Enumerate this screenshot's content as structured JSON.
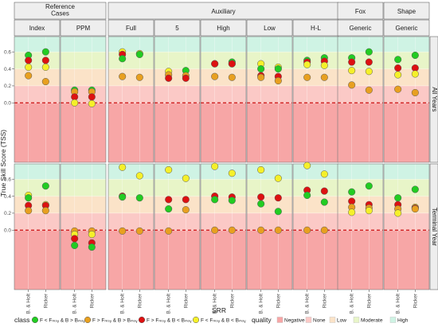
{
  "chart_data": {
    "type": "scatter",
    "ylabel": "True Skill Score (TSS)",
    "xlabel": "SRR",
    "categories": [
      "B. & Holt",
      "Ricker"
    ],
    "ylim": [
      -0.7,
      0.78
    ],
    "yticks": [
      0.0,
      0.2,
      0.4,
      0.6
    ],
    "ytick_labels": [
      "0.0",
      "0.2",
      "0.4",
      "0.6"
    ],
    "reference_line": {
      "y": 0.0,
      "color": "#cc1111",
      "style": "dashed"
    },
    "quality_bands": [
      {
        "name": "Negative",
        "from": -0.7,
        "to": 0.0,
        "color": "#f7a6a6"
      },
      {
        "name": "None",
        "from": 0.0,
        "to": 0.2,
        "color": "#fbc9c6"
      },
      {
        "name": "Low",
        "from": 0.2,
        "to": 0.4,
        "color": "#fbe3c8"
      },
      {
        "name": "Moderate",
        "from": 0.4,
        "to": 0.6,
        "color": "#e8f5c8"
      },
      {
        "name": "High",
        "from": 0.6,
        "to": 0.78,
        "color": "#cff3e4"
      }
    ],
    "groups": [
      {
        "label": "Reference\nCases",
        "panels": [
          "Index",
          "PPM"
        ]
      },
      {
        "label": "Auxiliary",
        "panels": [
          "Full",
          "5",
          "High",
          "Low",
          "H-L"
        ]
      },
      {
        "label": "Fox",
        "panels": [
          "Generic"
        ]
      },
      {
        "label": "Shape",
        "panels": [
          "Generic"
        ]
      }
    ],
    "row_labels": [
      "All Years",
      "Terminal Year"
    ],
    "class_legend": {
      "title": "class",
      "items": [
        {
          "key": "green",
          "label": "F < Fₘₛᵧ & B > Bₘₛᵧ",
          "color": "#22cc22"
        },
        {
          "key": "orange",
          "label": "F > Fₘₛᵧ & B > Bₘₛᵧ",
          "color": "#e8a020"
        },
        {
          "key": "red",
          "label": "F > Fₘₛᵧ & B < Bₘₛᵧ",
          "color": "#dd1111"
        },
        {
          "key": "yellow",
          "label": "F < Fₘₛᵧ & B < Bₘₛᵧ",
          "color": "#f5f02a"
        }
      ]
    },
    "quality_legend": {
      "title": "quality",
      "items": [
        {
          "label": "Negative",
          "color": "#f7a6a6"
        },
        {
          "label": "None",
          "color": "#fbc9c6"
        },
        {
          "label": "Low",
          "color": "#fbe3c8"
        },
        {
          "label": "Moderate",
          "color": "#e8f5c8"
        },
        {
          "label": "High",
          "color": "#cff3e4"
        }
      ]
    },
    "panels": [
      {
        "row": 0,
        "col": 0,
        "points": [
          {
            "x": 0,
            "y": 0.56,
            "c": "green"
          },
          {
            "x": 0,
            "y": 0.5,
            "c": "red"
          },
          {
            "x": 0,
            "y": 0.42,
            "c": "yellow"
          },
          {
            "x": 0,
            "y": 0.32,
            "c": "orange"
          },
          {
            "x": 1,
            "y": 0.6,
            "c": "green"
          },
          {
            "x": 1,
            "y": 0.5,
            "c": "red"
          },
          {
            "x": 1,
            "y": 0.42,
            "c": "yellow"
          },
          {
            "x": 1,
            "y": 0.25,
            "c": "orange"
          }
        ]
      },
      {
        "row": 0,
        "col": 1,
        "points": [
          {
            "x": 0,
            "y": 0.15,
            "c": "green"
          },
          {
            "x": 0,
            "y": 0.13,
            "c": "orange"
          },
          {
            "x": 0,
            "y": 0.07,
            "c": "red"
          },
          {
            "x": 0,
            "y": 0.0,
            "c": "yellow"
          },
          {
            "x": 1,
            "y": 0.15,
            "c": "green"
          },
          {
            "x": 1,
            "y": 0.13,
            "c": "orange"
          },
          {
            "x": 1,
            "y": 0.07,
            "c": "red"
          },
          {
            "x": 1,
            "y": -0.01,
            "c": "yellow"
          }
        ]
      },
      {
        "row": 0,
        "col": 2,
        "points": [
          {
            "x": 0,
            "y": 0.6,
            "c": "yellow"
          },
          {
            "x": 0,
            "y": 0.57,
            "c": "red"
          },
          {
            "x": 0,
            "y": 0.52,
            "c": "green"
          },
          {
            "x": 0,
            "y": 0.31,
            "c": "orange"
          },
          {
            "x": 1,
            "y": 0.58,
            "c": "yellow"
          },
          {
            "x": 1,
            "y": 0.57,
            "c": "green"
          },
          {
            "x": 1,
            "y": 0.3,
            "c": "orange"
          }
        ]
      },
      {
        "row": 0,
        "col": 3,
        "points": [
          {
            "x": 0,
            "y": 0.37,
            "c": "yellow"
          },
          {
            "x": 0,
            "y": 0.33,
            "c": "orange"
          },
          {
            "x": 0,
            "y": 0.29,
            "c": "red"
          },
          {
            "x": 1,
            "y": 0.38,
            "c": "green"
          },
          {
            "x": 1,
            "y": 0.32,
            "c": "orange"
          },
          {
            "x": 1,
            "y": 0.29,
            "c": "red"
          }
        ]
      },
      {
        "row": 0,
        "col": 4,
        "points": [
          {
            "x": 0,
            "y": 0.46,
            "c": "yellow"
          },
          {
            "x": 0,
            "y": 0.46,
            "c": "red"
          },
          {
            "x": 0,
            "y": 0.31,
            "c": "orange"
          },
          {
            "x": 1,
            "y": 0.48,
            "c": "green"
          },
          {
            "x": 1,
            "y": 0.46,
            "c": "yellow"
          },
          {
            "x": 1,
            "y": 0.46,
            "c": "red"
          },
          {
            "x": 1,
            "y": 0.3,
            "c": "orange"
          }
        ]
      },
      {
        "row": 0,
        "col": 5,
        "points": [
          {
            "x": 0,
            "y": 0.46,
            "c": "yellow"
          },
          {
            "x": 0,
            "y": 0.4,
            "c": "green"
          },
          {
            "x": 0,
            "y": 0.32,
            "c": "red"
          },
          {
            "x": 0,
            "y": 0.3,
            "c": "orange"
          },
          {
            "x": 1,
            "y": 0.42,
            "c": "yellow"
          },
          {
            "x": 1,
            "y": 0.4,
            "c": "green"
          },
          {
            "x": 1,
            "y": 0.31,
            "c": "red"
          },
          {
            "x": 1,
            "y": 0.26,
            "c": "orange"
          }
        ]
      },
      {
        "row": 0,
        "col": 6,
        "points": [
          {
            "x": 0,
            "y": 0.5,
            "c": "green"
          },
          {
            "x": 0,
            "y": 0.48,
            "c": "red"
          },
          {
            "x": 0,
            "y": 0.45,
            "c": "yellow"
          },
          {
            "x": 0,
            "y": 0.3,
            "c": "orange"
          },
          {
            "x": 1,
            "y": 0.53,
            "c": "green"
          },
          {
            "x": 1,
            "y": 0.49,
            "c": "red"
          },
          {
            "x": 1,
            "y": 0.44,
            "c": "yellow"
          },
          {
            "x": 1,
            "y": 0.3,
            "c": "orange"
          }
        ]
      },
      {
        "row": 0,
        "col": 7,
        "points": [
          {
            "x": 0,
            "y": 0.53,
            "c": "green"
          },
          {
            "x": 0,
            "y": 0.48,
            "c": "red"
          },
          {
            "x": 0,
            "y": 0.38,
            "c": "yellow"
          },
          {
            "x": 0,
            "y": 0.21,
            "c": "orange"
          },
          {
            "x": 1,
            "y": 0.6,
            "c": "green"
          },
          {
            "x": 1,
            "y": 0.48,
            "c": "red"
          },
          {
            "x": 1,
            "y": 0.37,
            "c": "yellow"
          },
          {
            "x": 1,
            "y": 0.15,
            "c": "orange"
          }
        ]
      },
      {
        "row": 0,
        "col": 8,
        "points": [
          {
            "x": 0,
            "y": 0.51,
            "c": "green"
          },
          {
            "x": 0,
            "y": 0.41,
            "c": "red"
          },
          {
            "x": 0,
            "y": 0.33,
            "c": "yellow"
          },
          {
            "x": 0,
            "y": 0.16,
            "c": "orange"
          },
          {
            "x": 1,
            "y": 0.56,
            "c": "green"
          },
          {
            "x": 1,
            "y": 0.41,
            "c": "red"
          },
          {
            "x": 1,
            "y": 0.34,
            "c": "yellow"
          },
          {
            "x": 1,
            "y": 0.12,
            "c": "orange"
          }
        ]
      },
      {
        "row": 1,
        "col": 0,
        "points": [
          {
            "x": 0,
            "y": 0.41,
            "c": "yellow"
          },
          {
            "x": 0,
            "y": 0.38,
            "c": "green"
          },
          {
            "x": 0,
            "y": 0.29,
            "c": "red"
          },
          {
            "x": 0,
            "y": 0.23,
            "c": "orange"
          },
          {
            "x": 1,
            "y": 0.52,
            "c": "green"
          },
          {
            "x": 1,
            "y": 0.3,
            "c": "yellow"
          },
          {
            "x": 1,
            "y": 0.29,
            "c": "red"
          },
          {
            "x": 1,
            "y": 0.23,
            "c": "orange"
          }
        ]
      },
      {
        "row": 1,
        "col": 1,
        "points": [
          {
            "x": 0,
            "y": -0.01,
            "c": "orange"
          },
          {
            "x": 0,
            "y": -0.05,
            "c": "yellow"
          },
          {
            "x": 0,
            "y": -0.1,
            "c": "red"
          },
          {
            "x": 0,
            "y": -0.18,
            "c": "green"
          },
          {
            "x": 1,
            "y": -0.01,
            "c": "orange"
          },
          {
            "x": 1,
            "y": -0.05,
            "c": "yellow"
          },
          {
            "x": 1,
            "y": -0.15,
            "c": "red"
          },
          {
            "x": 1,
            "y": -0.2,
            "c": "green"
          }
        ]
      },
      {
        "row": 1,
        "col": 2,
        "points": [
          {
            "x": 0,
            "y": 0.74,
            "c": "yellow"
          },
          {
            "x": 0,
            "y": 0.4,
            "c": "red"
          },
          {
            "x": 0,
            "y": 0.39,
            "c": "green"
          },
          {
            "x": 0,
            "y": -0.01,
            "c": "orange"
          },
          {
            "x": 1,
            "y": 0.64,
            "c": "yellow"
          },
          {
            "x": 1,
            "y": 0.38,
            "c": "green"
          },
          {
            "x": 1,
            "y": -0.01,
            "c": "orange"
          }
        ]
      },
      {
        "row": 1,
        "col": 3,
        "points": [
          {
            "x": 0,
            "y": 0.71,
            "c": "yellow"
          },
          {
            "x": 0,
            "y": 0.36,
            "c": "red"
          },
          {
            "x": 0,
            "y": 0.25,
            "c": "green"
          },
          {
            "x": 0,
            "y": -0.01,
            "c": "orange"
          },
          {
            "x": 1,
            "y": 0.61,
            "c": "yellow"
          },
          {
            "x": 1,
            "y": 0.36,
            "c": "red"
          },
          {
            "x": 1,
            "y": 0.24,
            "c": "orange"
          }
        ]
      },
      {
        "row": 1,
        "col": 4,
        "points": [
          {
            "x": 0,
            "y": 0.75,
            "c": "yellow"
          },
          {
            "x": 0,
            "y": 0.4,
            "c": "red"
          },
          {
            "x": 0,
            "y": 0.36,
            "c": "green"
          },
          {
            "x": 0,
            "y": 0.0,
            "c": "orange"
          },
          {
            "x": 1,
            "y": 0.67,
            "c": "yellow"
          },
          {
            "x": 1,
            "y": 0.39,
            "c": "red"
          },
          {
            "x": 1,
            "y": 0.35,
            "c": "green"
          },
          {
            "x": 1,
            "y": 0.0,
            "c": "orange"
          }
        ]
      },
      {
        "row": 1,
        "col": 5,
        "points": [
          {
            "x": 0,
            "y": 0.71,
            "c": "yellow"
          },
          {
            "x": 0,
            "y": 0.39,
            "c": "red"
          },
          {
            "x": 0,
            "y": 0.31,
            "c": "green"
          },
          {
            "x": 0,
            "y": 0.0,
            "c": "orange"
          },
          {
            "x": 1,
            "y": 0.61,
            "c": "yellow"
          },
          {
            "x": 1,
            "y": 0.38,
            "c": "red"
          },
          {
            "x": 1,
            "y": 0.22,
            "c": "green"
          },
          {
            "x": 1,
            "y": 0.0,
            "c": "orange"
          }
        ]
      },
      {
        "row": 1,
        "col": 6,
        "points": [
          {
            "x": 0,
            "y": 0.76,
            "c": "yellow"
          },
          {
            "x": 0,
            "y": 0.47,
            "c": "red"
          },
          {
            "x": 0,
            "y": 0.41,
            "c": "green"
          },
          {
            "x": 0,
            "y": 0.0,
            "c": "orange"
          },
          {
            "x": 1,
            "y": 0.66,
            "c": "yellow"
          },
          {
            "x": 1,
            "y": 0.46,
            "c": "red"
          },
          {
            "x": 1,
            "y": 0.33,
            "c": "green"
          },
          {
            "x": 1,
            "y": 0.0,
            "c": "orange"
          }
        ]
      },
      {
        "row": 1,
        "col": 7,
        "points": [
          {
            "x": 0,
            "y": 0.45,
            "c": "green"
          },
          {
            "x": 0,
            "y": 0.34,
            "c": "red"
          },
          {
            "x": 0,
            "y": 0.27,
            "c": "orange"
          },
          {
            "x": 0,
            "y": 0.21,
            "c": "yellow"
          },
          {
            "x": 1,
            "y": 0.52,
            "c": "green"
          },
          {
            "x": 1,
            "y": 0.3,
            "c": "red"
          },
          {
            "x": 1,
            "y": 0.26,
            "c": "orange"
          },
          {
            "x": 1,
            "y": 0.23,
            "c": "yellow"
          }
        ]
      },
      {
        "row": 1,
        "col": 8,
        "points": [
          {
            "x": 0,
            "y": 0.38,
            "c": "green"
          },
          {
            "x": 0,
            "y": 0.3,
            "c": "red"
          },
          {
            "x": 0,
            "y": 0.25,
            "c": "orange"
          },
          {
            "x": 0,
            "y": 0.2,
            "c": "yellow"
          },
          {
            "x": 1,
            "y": 0.48,
            "c": "green"
          },
          {
            "x": 1,
            "y": 0.27,
            "c": "yellow"
          },
          {
            "x": 1,
            "y": 0.26,
            "c": "red"
          },
          {
            "x": 1,
            "y": 0.25,
            "c": "orange"
          }
        ]
      }
    ]
  }
}
